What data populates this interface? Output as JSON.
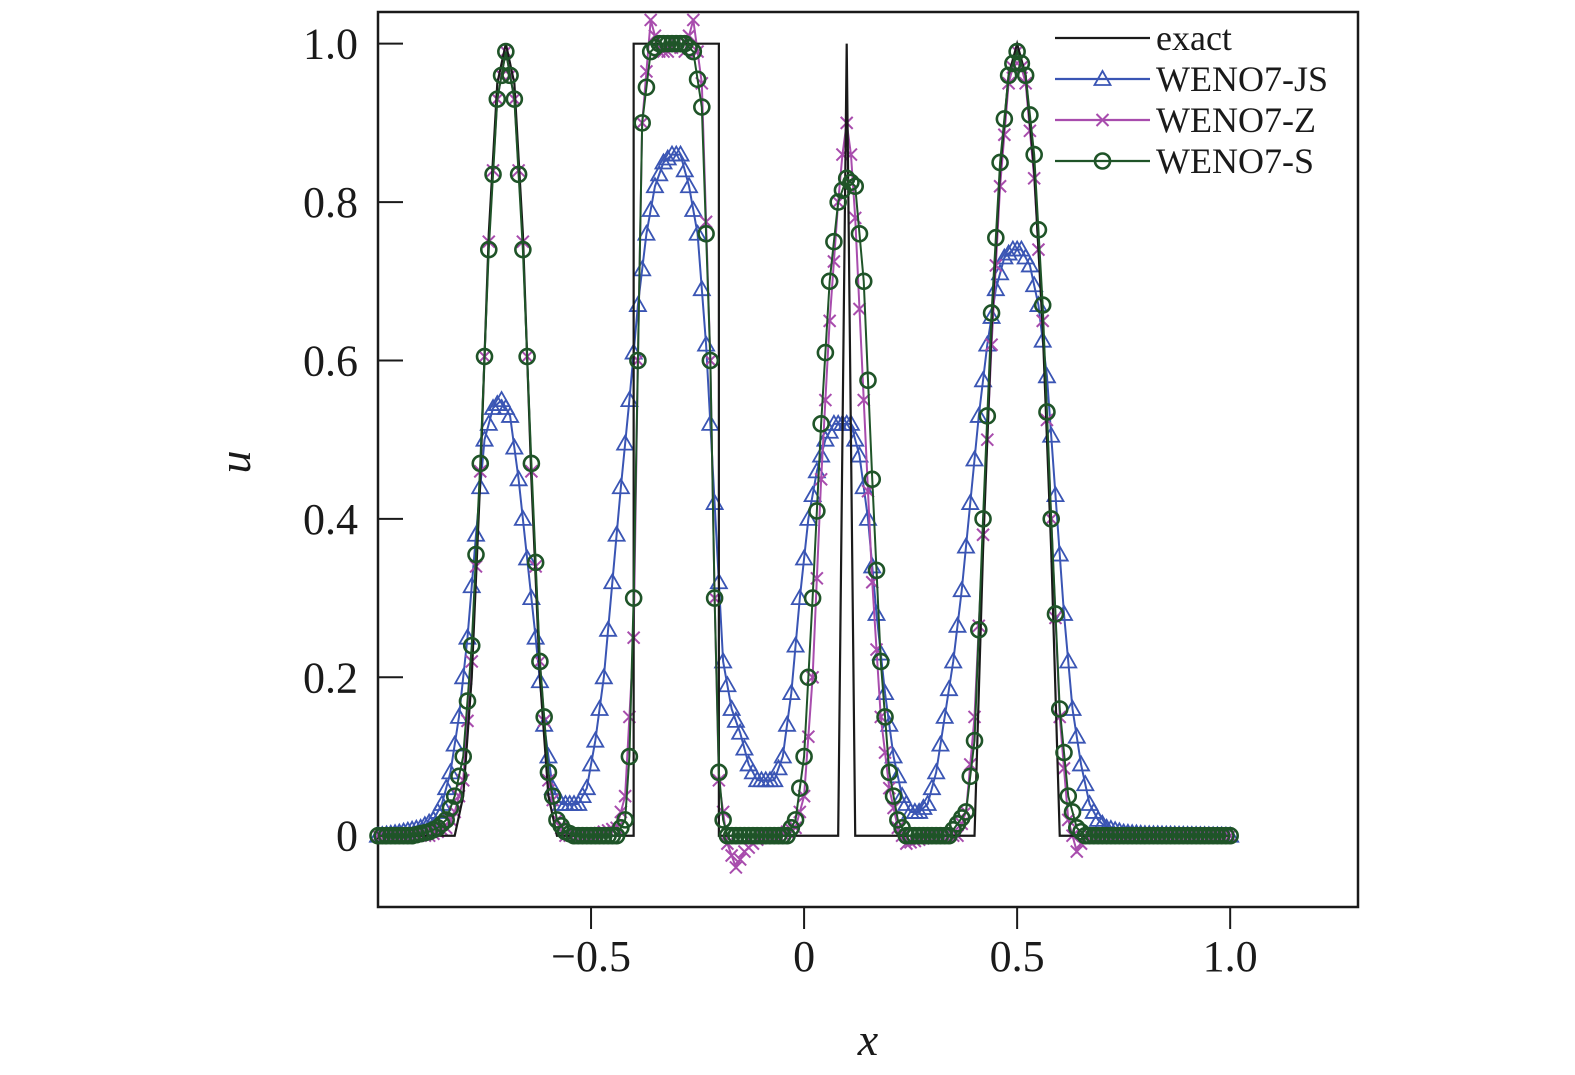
{
  "chart_data": {
    "type": "line",
    "xlabel": "x",
    "ylabel": "u",
    "xlim": [
      -1.0,
      1.3
    ],
    "ylim": [
      -0.09,
      1.04
    ],
    "xticks": [
      -0.5,
      0,
      0.5,
      1.0
    ],
    "xtick_labels": [
      "−0.5",
      "0",
      "0.5",
      "1.0"
    ],
    "yticks": [
      0,
      0.2,
      0.4,
      0.6,
      0.8,
      1.0
    ],
    "ytick_labels": [
      "0",
      "0.2",
      "0.4",
      "0.6",
      "0.8",
      "1.0"
    ],
    "grid": false,
    "legend_position": "top-right",
    "series": [
      {
        "name": "exact",
        "color": "#1a1a1a",
        "marker": "none",
        "x": [
          -1.0,
          -0.82,
          -0.8,
          -0.78,
          -0.76,
          -0.74,
          -0.72,
          -0.7,
          -0.68,
          -0.66,
          -0.64,
          -0.62,
          -0.6,
          -0.58,
          -0.4,
          -0.4,
          -0.2,
          -0.2,
          0.08,
          0.09,
          0.1,
          0.11,
          0.12,
          0.12,
          0.4,
          0.42,
          0.44,
          0.46,
          0.48,
          0.5,
          0.52,
          0.54,
          0.56,
          0.58,
          0.6,
          0.6,
          1.0
        ],
        "y": [
          0,
          0,
          0.05,
          0.2,
          0.45,
          0.76,
          0.95,
          1.0,
          0.95,
          0.76,
          0.45,
          0.2,
          0.05,
          0,
          0,
          1.0,
          1.0,
          0,
          0,
          0.5,
          1.0,
          0.5,
          0,
          0,
          0,
          0.36,
          0.64,
          0.84,
          0.96,
          1.0,
          0.96,
          0.84,
          0.64,
          0.36,
          0,
          0,
          0
        ]
      },
      {
        "name": "WENO7-JS",
        "color": "#3a55b4",
        "marker": "triangle",
        "x": [
          -1.0,
          -0.95,
          -0.9,
          -0.87,
          -0.85,
          -0.83,
          -0.81,
          -0.79,
          -0.77,
          -0.75,
          -0.73,
          -0.71,
          -0.69,
          -0.67,
          -0.65,
          -0.63,
          -0.61,
          -0.59,
          -0.57,
          -0.55,
          -0.53,
          -0.51,
          -0.49,
          -0.47,
          -0.45,
          -0.43,
          -0.41,
          -0.39,
          -0.37,
          -0.35,
          -0.33,
          -0.31,
          -0.29,
          -0.27,
          -0.25,
          -0.23,
          -0.21,
          -0.19,
          -0.17,
          -0.15,
          -0.13,
          -0.11,
          -0.09,
          -0.07,
          -0.05,
          -0.03,
          -0.01,
          0.01,
          0.03,
          0.05,
          0.07,
          0.09,
          0.11,
          0.13,
          0.15,
          0.17,
          0.19,
          0.21,
          0.23,
          0.25,
          0.27,
          0.29,
          0.31,
          0.33,
          0.35,
          0.37,
          0.39,
          0.41,
          0.43,
          0.45,
          0.47,
          0.49,
          0.51,
          0.53,
          0.55,
          0.57,
          0.59,
          0.61,
          0.63,
          0.65,
          0.67,
          0.69,
          0.71,
          0.75,
          0.8,
          0.9,
          1.0
        ],
        "y": [
          0,
          0.004,
          0.01,
          0.02,
          0.04,
          0.08,
          0.15,
          0.25,
          0.38,
          0.5,
          0.54,
          0.55,
          0.53,
          0.45,
          0.35,
          0.25,
          0.14,
          0.06,
          0.04,
          0.04,
          0.04,
          0.06,
          0.12,
          0.2,
          0.32,
          0.44,
          0.55,
          0.67,
          0.76,
          0.82,
          0.85,
          0.86,
          0.86,
          0.82,
          0.76,
          0.62,
          0.42,
          0.22,
          0.16,
          0.13,
          0.09,
          0.07,
          0.07,
          0.07,
          0.1,
          0.18,
          0.3,
          0.4,
          0.46,
          0.5,
          0.52,
          0.52,
          0.52,
          0.48,
          0.4,
          0.28,
          0.18,
          0.1,
          0.05,
          0.03,
          0.03,
          0.04,
          0.08,
          0.15,
          0.22,
          0.31,
          0.42,
          0.53,
          0.62,
          0.69,
          0.73,
          0.74,
          0.74,
          0.72,
          0.67,
          0.58,
          0.43,
          0.28,
          0.16,
          0.09,
          0.04,
          0.02,
          0.01,
          0.004,
          0.002,
          0.001,
          0
        ]
      },
      {
        "name": "WENO7-Z",
        "color": "#a84cad",
        "marker": "x",
        "x": [
          -1.0,
          -0.88,
          -0.84,
          -0.82,
          -0.8,
          -0.78,
          -0.76,
          -0.74,
          -0.72,
          -0.7,
          -0.68,
          -0.66,
          -0.64,
          -0.62,
          -0.6,
          -0.58,
          -0.56,
          -0.5,
          -0.44,
          -0.42,
          -0.4,
          -0.39,
          -0.38,
          -0.36,
          -0.34,
          -0.32,
          -0.3,
          -0.28,
          -0.26,
          -0.24,
          -0.22,
          -0.21,
          -0.2,
          -0.18,
          -0.16,
          -0.14,
          -0.1,
          -0.06,
          -0.02,
          0.0,
          0.02,
          0.04,
          0.06,
          0.08,
          0.09,
          0.1,
          0.11,
          0.12,
          0.14,
          0.16,
          0.18,
          0.2,
          0.22,
          0.24,
          0.3,
          0.36,
          0.38,
          0.4,
          0.42,
          0.44,
          0.46,
          0.48,
          0.5,
          0.52,
          0.54,
          0.56,
          0.58,
          0.6,
          0.62,
          0.64,
          0.66,
          0.7,
          0.8,
          1.0
        ],
        "y": [
          0,
          0,
          0.01,
          0.03,
          0.07,
          0.22,
          0.46,
          0.75,
          0.93,
          0.99,
          0.93,
          0.75,
          0.46,
          0.22,
          0.07,
          0.02,
          0.0,
          0.0,
          0.01,
          0.05,
          0.25,
          0.6,
          0.9,
          1.03,
          0.99,
          0.99,
          1.0,
          0.99,
          1.03,
          0.95,
          0.6,
          0.3,
          0.07,
          -0.01,
          -0.04,
          -0.02,
          0.0,
          0.0,
          0.01,
          0.05,
          0.2,
          0.45,
          0.65,
          0.8,
          0.86,
          0.9,
          0.86,
          0.78,
          0.55,
          0.32,
          0.15,
          0.06,
          0.01,
          -0.01,
          0.0,
          0.0,
          0.03,
          0.15,
          0.38,
          0.62,
          0.82,
          0.95,
          0.99,
          0.95,
          0.83,
          0.65,
          0.4,
          0.15,
          0.02,
          -0.02,
          0.0,
          0.0,
          0.0,
          0
        ]
      },
      {
        "name": "WENO7-S",
        "color": "#1f5428",
        "marker": "circle",
        "x": [
          -1.0,
          -0.92,
          -0.88,
          -0.86,
          -0.84,
          -0.82,
          -0.8,
          -0.78,
          -0.76,
          -0.74,
          -0.72,
          -0.7,
          -0.68,
          -0.66,
          -0.64,
          -0.62,
          -0.6,
          -0.58,
          -0.56,
          -0.54,
          -0.5,
          -0.44,
          -0.42,
          -0.41,
          -0.4,
          -0.39,
          -0.38,
          -0.36,
          -0.34,
          -0.32,
          -0.3,
          -0.28,
          -0.26,
          -0.24,
          -0.22,
          -0.21,
          -0.2,
          -0.19,
          -0.18,
          -0.16,
          -0.12,
          -0.08,
          -0.04,
          -0.02,
          0.0,
          0.02,
          0.04,
          0.06,
          0.08,
          0.1,
          0.12,
          0.14,
          0.16,
          0.18,
          0.2,
          0.22,
          0.24,
          0.28,
          0.34,
          0.38,
          0.4,
          0.42,
          0.44,
          0.46,
          0.48,
          0.5,
          0.52,
          0.54,
          0.56,
          0.58,
          0.6,
          0.62,
          0.64,
          0.66,
          0.7,
          0.8,
          0.9,
          1.0
        ],
        "y": [
          0,
          0,
          0.005,
          0.01,
          0.02,
          0.05,
          0.1,
          0.24,
          0.47,
          0.74,
          0.93,
          0.99,
          0.93,
          0.74,
          0.47,
          0.22,
          0.08,
          0.02,
          0.005,
          0.0,
          0.0,
          0.0,
          0.02,
          0.1,
          0.3,
          0.6,
          0.9,
          0.99,
          1.0,
          1.0,
          1.0,
          1.0,
          0.99,
          0.92,
          0.6,
          0.3,
          0.08,
          0.02,
          0.0,
          0.0,
          0.0,
          0.0,
          0.0,
          0.02,
          0.1,
          0.3,
          0.52,
          0.7,
          0.8,
          0.83,
          0.82,
          0.7,
          0.45,
          0.22,
          0.08,
          0.02,
          0.0,
          0.0,
          0.0,
          0.03,
          0.12,
          0.4,
          0.66,
          0.85,
          0.96,
          0.99,
          0.96,
          0.86,
          0.67,
          0.4,
          0.16,
          0.05,
          0.01,
          0.0,
          0.0,
          0.0,
          0.0,
          0
        ]
      }
    ]
  }
}
